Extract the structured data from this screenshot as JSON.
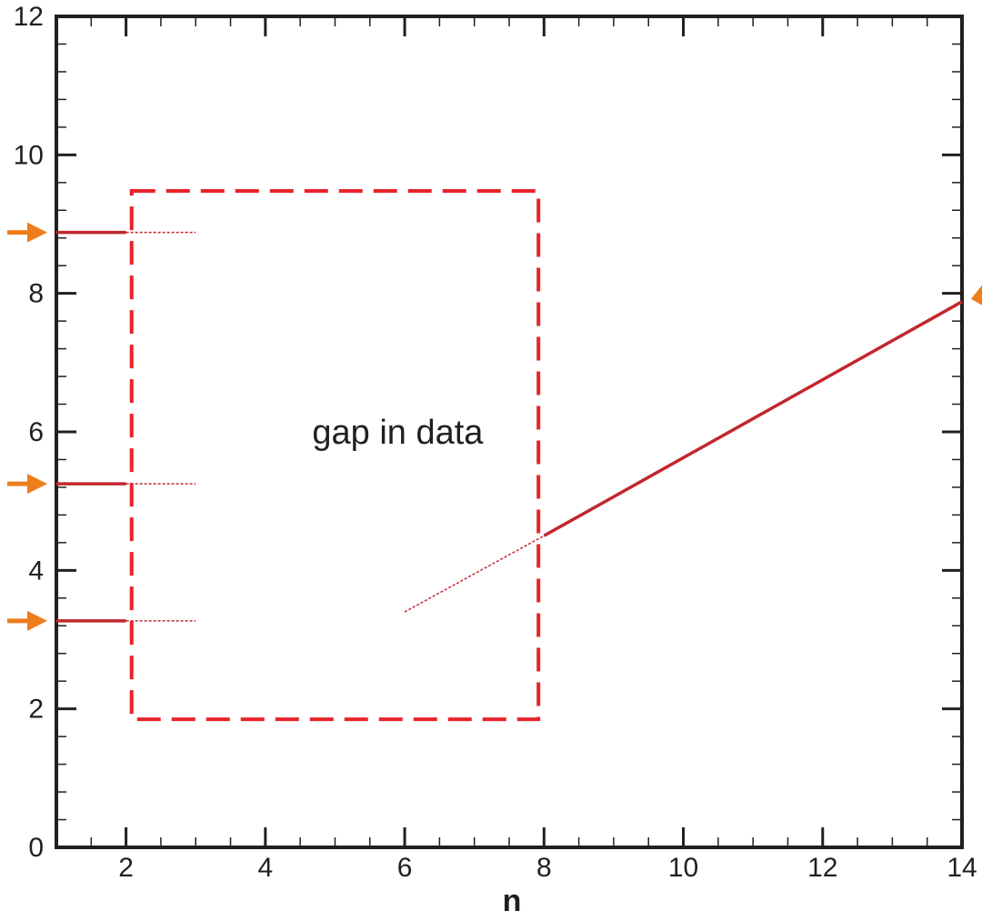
{
  "chart_data": {
    "type": "line",
    "title": "",
    "xlabel": "n",
    "ylabel": "",
    "xlim": [
      1,
      14
    ],
    "ylim": [
      0,
      12
    ],
    "xticks": [
      "2",
      "4",
      "6",
      "8",
      "10",
      "12",
      "14"
    ],
    "yticks": [
      "0",
      "2",
      "4",
      "6",
      "8",
      "10",
      "12"
    ],
    "grid": false,
    "series": [
      {
        "style": "solid",
        "x": [
          1,
          2
        ],
        "y": [
          8.88,
          8.88
        ]
      },
      {
        "style": "dotted",
        "x": [
          2,
          3
        ],
        "y": [
          8.88,
          8.88
        ]
      },
      {
        "style": "solid",
        "x": [
          1,
          2
        ],
        "y": [
          5.25,
          5.25
        ]
      },
      {
        "style": "dotted",
        "x": [
          2,
          3
        ],
        "y": [
          5.25,
          5.25
        ]
      },
      {
        "style": "solid",
        "x": [
          1,
          2
        ],
        "y": [
          3.27,
          3.27
        ]
      },
      {
        "style": "dotted",
        "x": [
          2,
          3
        ],
        "y": [
          3.27,
          3.27
        ]
      },
      {
        "style": "dotted",
        "x": [
          6,
          8
        ],
        "y": [
          3.4,
          4.5
        ]
      },
      {
        "style": "solid",
        "x": [
          8,
          14
        ],
        "y": [
          4.5,
          7.88
        ]
      }
    ],
    "annotations": [
      {
        "text": "gap in data",
        "x": 5.9,
        "y": 6.0
      }
    ],
    "gap_box": {
      "x": [
        2.08,
        7.92
      ],
      "y": [
        1.85,
        9.48
      ]
    },
    "arrow_markers": [
      8.88,
      5.25,
      3.27,
      7.88
    ],
    "colors": {
      "line": "#c1272d",
      "box": "#e8232a",
      "arrow": "#ee7d1c",
      "axis": "#231f20"
    }
  }
}
